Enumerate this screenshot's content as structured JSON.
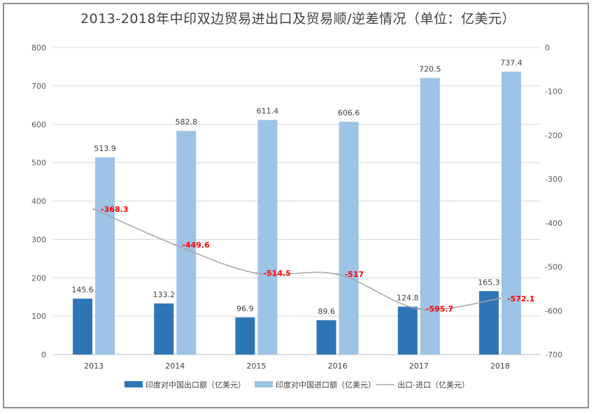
{
  "title": "2013-2018年中印双边贸易进出口及贸易顺/逆差情况（单位：亿美元）",
  "chart_data": {
    "type": "bar",
    "categories": [
      "2013",
      "2014",
      "2015",
      "2016",
      "2017",
      "2018"
    ],
    "series": [
      {
        "name": "印度对中国出口额（亿美元）",
        "type": "bar",
        "axis": "left",
        "color": "#2e75b6",
        "values": [
          145.6,
          133.2,
          96.9,
          89.6,
          124.8,
          165.3
        ],
        "labels": [
          "145.6",
          "133.2",
          "96.9",
          "89.6",
          "124.8",
          "165.3"
        ]
      },
      {
        "name": "印度对中国进口额（亿美元）",
        "type": "bar",
        "axis": "left",
        "color": "#9dc3e6",
        "values": [
          513.9,
          582.8,
          611.4,
          606.6,
          720.5,
          737.4
        ],
        "labels": [
          "513.9",
          "582.8",
          "611.4",
          "606.6",
          "720.5",
          "737.4"
        ]
      },
      {
        "name": "出口-进口（亿美元）",
        "type": "line",
        "axis": "right",
        "color": "#a6a6a6",
        "values": [
          -368.3,
          -449.6,
          -514.5,
          -517,
          -595.7,
          -572.1
        ],
        "labels": [
          "-368.3",
          "-449.6",
          "-514.5",
          "-517",
          "-595.7",
          "-572.1"
        ]
      }
    ],
    "left_axis": {
      "ylim": [
        0,
        800
      ],
      "ticks": [
        "0",
        "100",
        "200",
        "300",
        "400",
        "500",
        "600",
        "700",
        "800"
      ]
    },
    "right_axis": {
      "ylim": [
        -700,
        0
      ],
      "ticks": [
        "0",
        "-100",
        "-200",
        "-300",
        "-400",
        "-500",
        "-600",
        "-700"
      ]
    },
    "grid": true,
    "legend_position": "bottom",
    "label_color": "#ff0000"
  }
}
